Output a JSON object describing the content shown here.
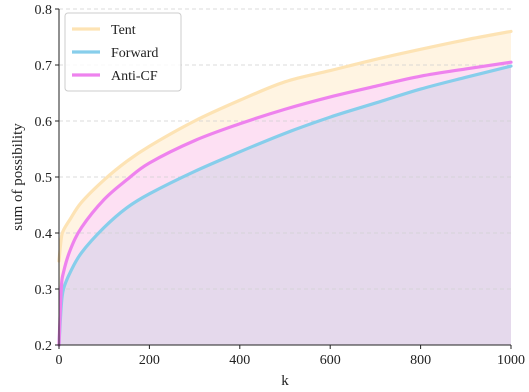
{
  "chart_data": {
    "type": "area",
    "xlabel": "k",
    "ylabel": "sum of possibility",
    "xlim": [
      0,
      1000
    ],
    "ylim": [
      0.2,
      0.8
    ],
    "xticks": [
      0,
      200,
      400,
      600,
      800,
      1000
    ],
    "yticks": [
      0.2,
      0.3,
      0.4,
      0.5,
      0.6,
      0.7,
      0.8
    ],
    "grid": "horizontal dashed",
    "legend": "top-left",
    "series": [
      {
        "name": "Tent",
        "color": "#fde3b4",
        "fill": "#fff4e2",
        "x": [
          0,
          5,
          10,
          25,
          50,
          100,
          150,
          200,
          300,
          400,
          500,
          600,
          700,
          800,
          900,
          1000
        ],
        "values": [
          0.35,
          0.39,
          0.405,
          0.425,
          0.455,
          0.495,
          0.528,
          0.555,
          0.6,
          0.637,
          0.67,
          0.69,
          0.71,
          0.728,
          0.745,
          0.76
        ]
      },
      {
        "name": "Forward",
        "color": "#87ceeb",
        "fill": "#e5d9ec",
        "x": [
          0,
          5,
          10,
          25,
          50,
          100,
          150,
          200,
          300,
          400,
          500,
          600,
          700,
          800,
          900,
          1000
        ],
        "values": [
          0.2,
          0.27,
          0.3,
          0.33,
          0.365,
          0.41,
          0.445,
          0.47,
          0.51,
          0.545,
          0.578,
          0.607,
          0.632,
          0.657,
          0.678,
          0.698
        ]
      },
      {
        "name": "Anti-CF",
        "color": "#ee82ee",
        "fill": "#fde0f3",
        "x": [
          0,
          5,
          10,
          25,
          50,
          100,
          150,
          200,
          300,
          400,
          500,
          600,
          700,
          800,
          900,
          1000
        ],
        "values": [
          0.2,
          0.3,
          0.33,
          0.37,
          0.41,
          0.46,
          0.495,
          0.525,
          0.565,
          0.595,
          0.621,
          0.643,
          0.662,
          0.68,
          0.693,
          0.705
        ]
      }
    ]
  }
}
